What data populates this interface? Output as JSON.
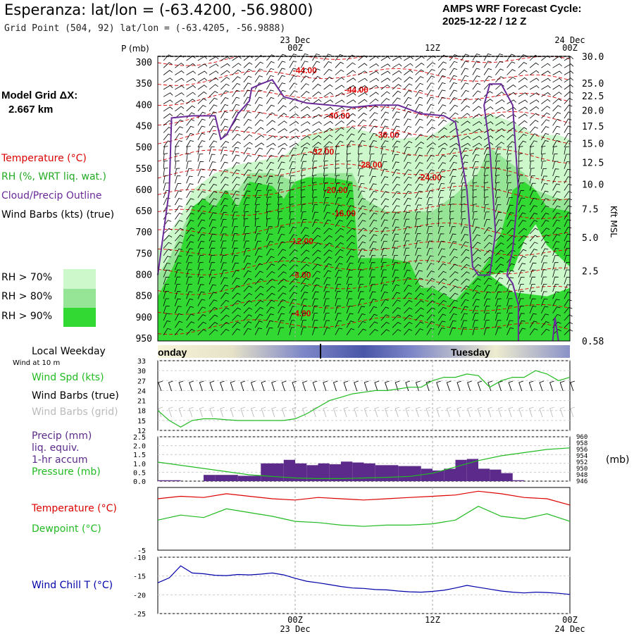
{
  "header": {
    "title": "Esperanza:  lat/lon = (-63.4200, -56.9800)",
    "subtitle": "Grid Point (504, 92) lat/lon = (-63.4205, -56.9888)",
    "cycle_line1": "AMPS WRF Forecast Cycle:",
    "cycle_line2": "2025-12-22 / 12  Z"
  },
  "left_labels": {
    "model_grid": "Model Grid ΔX:",
    "model_grid_value": "2.667 km",
    "temperature": "Temperature (°C)",
    "rh": "RH (%, WRT liq. wat.)",
    "cloud": "Cloud/Precip Outline",
    "wind_barbs": "Wind Barbs (kts) (true)",
    "rh70": "RH > 70%",
    "rh80": "RH > 80%",
    "rh90": "RH > 90%",
    "p_unit": "P (mb)",
    "kft": "Kft MSL",
    "weekday": "Local Weekday",
    "wind10": "Wind at 10 m",
    "wind_spd": "Wind Spd (kts)",
    "wind_barbs_true": "Wind Barbs (true)",
    "wind_barbs_grid": "Wind Barbs (grid)",
    "precip1": "Precip (mm)",
    "precip2": "liq. equiv.",
    "precip3": "1-hr accum",
    "pressure": "Pressure (mb)",
    "mb": "(mb)",
    "temp2": "Temperature (°C)",
    "dewpoint": "Dewpoint (°C)",
    "windchill": "Wind Chill T (°C)"
  },
  "colors": {
    "rh70": "#ccf8cc",
    "rh80": "#96e496",
    "rh90": "#33d933",
    "temperature": "#dd0000",
    "dewpoint": "#22bb22",
    "cloud": "#6a2a9a",
    "windchill": "#0000aa",
    "precip": "#5b2a8a",
    "pressure": "#22bb22"
  },
  "chart_data": [
    {
      "type": "heatmap",
      "name": "time-height cross section",
      "x_ticks": [
        {
          "top": "23 Dec",
          "bottom": "00Z",
          "t": 12
        },
        {
          "top": "",
          "bottom": "12Z",
          "t": 24
        },
        {
          "top": "24 Dec",
          "bottom": "00Z",
          "t": 36
        }
      ],
      "time_range_hours": [
        0,
        36
      ],
      "pressure_ticks": [
        300,
        350,
        400,
        450,
        500,
        550,
        600,
        650,
        700,
        750,
        800,
        850,
        900,
        950
      ],
      "pressure_range": [
        285,
        955
      ],
      "height_ticks": [
        "30.0",
        "25.0",
        "22.5",
        "20.0",
        "17.5",
        "15.0",
        "12.5",
        "10.0",
        "7.5",
        "5.0",
        "2.5",
        "0.58"
      ],
      "height_tick_pressure": [
        285,
        348,
        378,
        412,
        449,
        490,
        535,
        586,
        644,
        711,
        790,
        955
      ],
      "temperature_labels": [
        {
          "text": "-44.00",
          "t": 11.8,
          "p": 318
        },
        {
          "text": "-44.00",
          "t": 16.3,
          "p": 364
        },
        {
          "text": "-40.00",
          "t": 14.7,
          "p": 425
        },
        {
          "text": "-36.00",
          "t": 19.0,
          "p": 470
        },
        {
          "text": "-32.00",
          "t": 13.3,
          "p": 510
        },
        {
          "text": "-28.00",
          "t": 17.5,
          "p": 540
        },
        {
          "text": "-24.00",
          "t": 22.7,
          "p": 570
        },
        {
          "text": "-20.00",
          "t": 14.5,
          "p": 600
        },
        {
          "text": "-16.00",
          "t": 15.2,
          "p": 655
        },
        {
          "text": "-12.00",
          "t": 11.5,
          "p": 720
        },
        {
          "text": "-8.00",
          "t": 11.7,
          "p": 800
        },
        {
          "text": "-4.00",
          "t": 11.7,
          "p": 890
        }
      ]
    },
    {
      "type": "line",
      "name": "wind speed",
      "y_ticks": [
        12,
        15,
        18,
        21,
        24,
        27,
        30,
        33
      ],
      "ylim": [
        12,
        33
      ],
      "x_hours": [
        0,
        1,
        2,
        3,
        4,
        5,
        6,
        7,
        8,
        9,
        10,
        11,
        12,
        13,
        14,
        15,
        16,
        17,
        18,
        19,
        20,
        21,
        22,
        23,
        24,
        25,
        26,
        27,
        28,
        29,
        30,
        31,
        32,
        33,
        34,
        35,
        36
      ],
      "values": [
        18.0,
        15.0,
        13.0,
        15.0,
        15.5,
        15.5,
        15.2,
        15.0,
        15.0,
        15.0,
        15.0,
        15.0,
        15.5,
        17.0,
        19.0,
        21.0,
        22.0,
        23.0,
        23.5,
        24.0,
        24.0,
        24.5,
        25.0,
        25.0,
        27.0,
        28.0,
        28.0,
        29.0,
        28.5,
        25.0,
        27.0,
        28.0,
        28.0,
        30.0,
        29.0,
        27.0,
        28.0
      ]
    },
    {
      "type": "bar",
      "name": "precipitation and pressure",
      "y_ticks": [
        "0.0",
        "0.5",
        "1.0",
        "1.5",
        "2.0",
        "2.5"
      ],
      "ylim": [
        0,
        2.5
      ],
      "pressure_ticks": [
        "946",
        "948",
        "950",
        "952",
        "954",
        "956",
        "958",
        "960"
      ],
      "pressure_range": [
        946,
        960
      ],
      "precip_x_hours": [
        0,
        1,
        2,
        3,
        4,
        5,
        6,
        7,
        8,
        9,
        10,
        11,
        12,
        13,
        14,
        15,
        16,
        17,
        18,
        19,
        20,
        21,
        22,
        23,
        24,
        25,
        26,
        27,
        28,
        29,
        30,
        31
      ],
      "precip_values": [
        0.05,
        0.05,
        0.0,
        0.0,
        0.35,
        0.35,
        0.35,
        0.3,
        0.3,
        1.0,
        1.0,
        1.2,
        1.0,
        0.9,
        1.0,
        0.95,
        1.1,
        1.05,
        1.0,
        0.9,
        0.9,
        0.85,
        0.85,
        0.7,
        0.6,
        0.7,
        1.2,
        1.25,
        0.7,
        0.65,
        0.45,
        0.05
      ],
      "pressure_x_hours": [
        0,
        2,
        4,
        6,
        8,
        10,
        12,
        14,
        16,
        18,
        20,
        22,
        24,
        26,
        28,
        30,
        32,
        34,
        36
      ],
      "pressure_values": [
        952.0,
        951.0,
        950.0,
        949.0,
        948.0,
        947.5,
        947.0,
        946.8,
        946.8,
        947.0,
        947.2,
        947.5,
        948.5,
        950.5,
        952.5,
        954.0,
        955.0,
        956.0,
        956.5
      ]
    },
    {
      "type": "line",
      "name": "temperature and dewpoint",
      "y_ticks": [
        "-5"
      ],
      "ylim": [
        -5,
        0
      ],
      "x_hours": [
        0,
        2,
        4,
        6,
        8,
        10,
        12,
        14,
        16,
        18,
        20,
        22,
        24,
        26,
        28,
        30,
        32,
        34,
        36
      ],
      "temperature": [
        -0.9,
        -0.7,
        -0.8,
        -0.5,
        -0.7,
        -0.9,
        -1.0,
        -0.8,
        -0.9,
        -1.0,
        -0.9,
        -0.8,
        -0.7,
        -0.6,
        -0.3,
        -0.5,
        -0.8,
        -0.9,
        -1.4
      ],
      "dewpoint": [
        -2.6,
        -2.2,
        -2.4,
        -1.7,
        -2.0,
        -2.3,
        -2.7,
        -2.8,
        -3.0,
        -3.1,
        -3.0,
        -3.0,
        -2.9,
        -2.6,
        -1.5,
        -2.3,
        -2.5,
        -2.1,
        -2.7
      ]
    },
    {
      "type": "line",
      "name": "wind chill",
      "y_ticks": [
        "-10",
        "-15",
        "-20",
        "-25"
      ],
      "ylim": [
        -25,
        -10
      ],
      "x_hours": [
        0,
        1,
        2,
        3,
        4,
        5,
        6,
        7,
        8,
        9,
        10,
        11,
        12,
        13,
        14,
        15,
        16,
        17,
        18,
        19,
        20,
        21,
        22,
        23,
        24,
        25,
        26,
        27,
        28,
        29,
        30,
        31,
        32,
        33,
        34,
        35,
        36
      ],
      "values": [
        -16.8,
        -15.5,
        -12.3,
        -14.2,
        -14.4,
        -14.8,
        -14.9,
        -14.6,
        -14.7,
        -14.5,
        -14.2,
        -14.7,
        -15.6,
        -16.4,
        -16.8,
        -17.3,
        -17.8,
        -18.2,
        -18.3,
        -18.6,
        -18.7,
        -19.0,
        -19.2,
        -19.3,
        -19.1,
        -18.8,
        -18.2,
        -17.5,
        -18.0,
        -18.5,
        -19.0,
        -19.3,
        -19.5,
        -19.3,
        -19.4,
        -19.6,
        -19.9
      ]
    }
  ],
  "timeline": {
    "monday": "Monday",
    "tuesday": "Tuesday"
  },
  "bottom_axis": {
    "labels_time": [
      "00Z",
      "12Z",
      "00Z"
    ],
    "labels_date": [
      "23 Dec",
      "",
      "24 Dec"
    ]
  }
}
